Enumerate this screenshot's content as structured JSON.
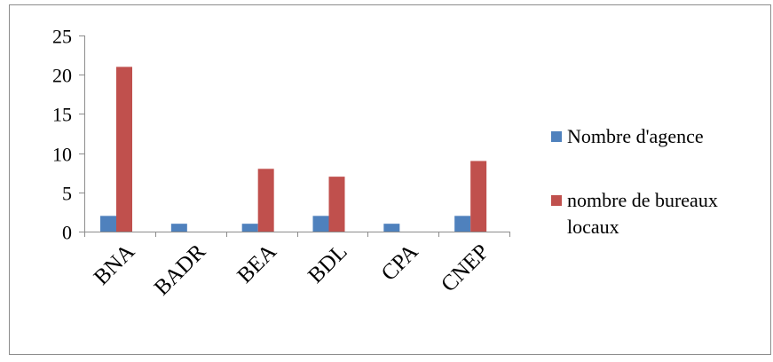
{
  "chart_data": {
    "type": "bar",
    "title": "",
    "xlabel": "",
    "ylabel": "",
    "categories": [
      "BNA",
      "BADR",
      "BEA",
      "BDL",
      "CPA",
      "CNEP"
    ],
    "series": [
      {
        "name": "Nombre  d'agence",
        "values": [
          2,
          1,
          1,
          2,
          1,
          2
        ],
        "color": "#4F81BD"
      },
      {
        "name": "nombre de bureaux locaux",
        "values": [
          21,
          0,
          8,
          7,
          0,
          9
        ],
        "color": "#C0504D"
      }
    ],
    "ylim": [
      0,
      25
    ],
    "yticks": [
      0,
      5,
      10,
      15,
      20,
      25
    ],
    "grid": false,
    "legend": "right",
    "legend_lines": [
      [
        "Nombre  d'agence"
      ],
      [
        "nombre de bureaux",
        "locaux"
      ]
    ]
  }
}
